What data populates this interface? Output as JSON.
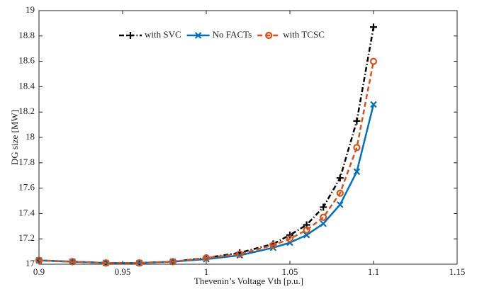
{
  "chart_data": {
    "type": "line",
    "xlabel": "Thevenin’s Voltage Vth [p.u.]",
    "ylabel": "DG size [MW]",
    "x": [
      0.9,
      0.92,
      0.94,
      0.96,
      0.98,
      1.0,
      1.02,
      1.04,
      1.05,
      1.06,
      1.07,
      1.08,
      1.09,
      1.1
    ],
    "series": [
      {
        "name": "with SVC",
        "color": "#000000",
        "dash": "7,3,1.5,3",
        "marker": "plus",
        "values": [
          17.03,
          17.02,
          17.01,
          17.01,
          17.02,
          17.05,
          17.09,
          17.16,
          17.23,
          17.31,
          17.45,
          17.68,
          18.13,
          18.87
        ]
      },
      {
        "name": "No FACTs",
        "color": "#0072BD",
        "dash": "none",
        "marker": "cross",
        "values": [
          17.03,
          17.02,
          17.01,
          17.01,
          17.02,
          17.04,
          17.07,
          17.13,
          17.17,
          17.23,
          17.32,
          17.47,
          17.73,
          18.26
        ]
      },
      {
        "name": "with TCSC",
        "color": "#D95319",
        "dash": "7,4",
        "marker": "circle",
        "values": [
          17.03,
          17.02,
          17.01,
          17.01,
          17.02,
          17.05,
          17.08,
          17.15,
          17.2,
          17.27,
          17.37,
          17.56,
          17.92,
          18.6
        ]
      }
    ],
    "xlim": [
      0.9,
      1.15
    ],
    "xticks": [
      0.9,
      0.95,
      1,
      1.05,
      1.1,
      1.15
    ],
    "ylim": [
      17,
      19
    ],
    "yticks": [
      17,
      17.2,
      17.4,
      17.6,
      17.8,
      18,
      18.2,
      18.4,
      18.6,
      18.8,
      19
    ],
    "grid": false,
    "legend": "north"
  }
}
